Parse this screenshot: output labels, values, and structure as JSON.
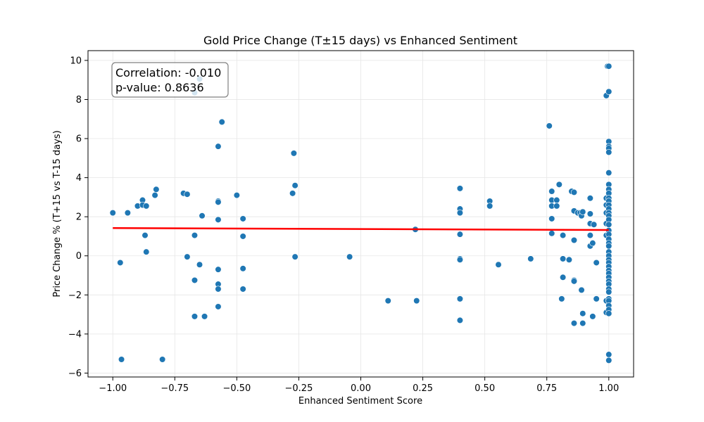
{
  "chart_data": {
    "type": "scatter",
    "title": "Gold Price Change (T±15 days) vs Enhanced Sentiment",
    "xlabel": "Enhanced Sentiment Score",
    "ylabel": "Price Change % (T+15 vs T-15 days)",
    "xlim": [
      -1.1,
      1.1
    ],
    "ylim": [
      -6.2,
      10.5
    ],
    "xticks": [
      -1.0,
      -0.75,
      -0.5,
      -0.25,
      0.0,
      0.25,
      0.5,
      0.75,
      1.0
    ],
    "xtick_labels": [
      "−1.00",
      "−0.75",
      "−0.50",
      "−0.25",
      "0.00",
      "0.25",
      "0.50",
      "0.75",
      "1.00"
    ],
    "yticks": [
      -6,
      -4,
      -2,
      0,
      2,
      4,
      6,
      8,
      10
    ],
    "ytick_labels": [
      "−6",
      "−4",
      "−2",
      "0",
      "2",
      "4",
      "6",
      "8",
      "10"
    ],
    "grid": true,
    "point_color": "#1f77b4",
    "regression_line": {
      "color": "#ff0000",
      "x": [
        -1.0,
        1.0
      ],
      "y": [
        1.42,
        1.32
      ]
    },
    "annotation": {
      "lines": [
        "Correlation: -0.010",
        "p-value: 0.8636"
      ],
      "placement": "top-left"
    },
    "points": [
      [
        -1.0,
        2.2
      ],
      [
        -0.97,
        -0.35
      ],
      [
        -0.965,
        -5.3
      ],
      [
        -0.94,
        2.2
      ],
      [
        -0.9,
        2.55
      ],
      [
        -0.88,
        2.85
      ],
      [
        -0.88,
        2.6
      ],
      [
        -0.87,
        1.05
      ],
      [
        -0.865,
        2.55
      ],
      [
        -0.865,
        0.2
      ],
      [
        -0.83,
        3.1
      ],
      [
        -0.825,
        3.4
      ],
      [
        -0.8,
        -5.3
      ],
      [
        -0.715,
        3.2
      ],
      [
        -0.7,
        3.15
      ],
      [
        -0.7,
        -0.05
      ],
      [
        -0.67,
        8.35
      ],
      [
        -0.67,
        1.05
      ],
      [
        -0.67,
        -1.25
      ],
      [
        -0.67,
        -3.1
      ],
      [
        -0.65,
        9.05
      ],
      [
        -0.65,
        -0.45
      ],
      [
        -0.64,
        2.05
      ],
      [
        -0.63,
        -3.1
      ],
      [
        -0.575,
        5.6
      ],
      [
        -0.575,
        2.8
      ],
      [
        -0.575,
        2.75
      ],
      [
        -0.575,
        1.85
      ],
      [
        -0.575,
        -0.7
      ],
      [
        -0.575,
        -1.45
      ],
      [
        -0.575,
        -1.7
      ],
      [
        -0.575,
        -2.6
      ],
      [
        -0.56,
        6.85
      ],
      [
        -0.5,
        3.1
      ],
      [
        -0.475,
        1.9
      ],
      [
        -0.475,
        1.0
      ],
      [
        -0.475,
        -0.65
      ],
      [
        -0.475,
        -1.7
      ],
      [
        -0.27,
        5.25
      ],
      [
        -0.275,
        3.2
      ],
      [
        -0.265,
        3.6
      ],
      [
        -0.265,
        -0.05
      ],
      [
        -0.045,
        -0.05
      ],
      [
        0.11,
        -2.3
      ],
      [
        0.22,
        1.35
      ],
      [
        0.225,
        -2.3
      ],
      [
        0.4,
        3.45
      ],
      [
        0.4,
        2.4
      ],
      [
        0.4,
        2.2
      ],
      [
        0.4,
        1.1
      ],
      [
        0.4,
        -0.15
      ],
      [
        0.4,
        -0.2
      ],
      [
        0.4,
        -2.2
      ],
      [
        0.4,
        -3.3
      ],
      [
        0.52,
        2.8
      ],
      [
        0.52,
        2.55
      ],
      [
        0.555,
        -0.45
      ],
      [
        0.685,
        -0.15
      ],
      [
        0.76,
        6.65
      ],
      [
        0.77,
        3.3
      ],
      [
        0.77,
        2.85
      ],
      [
        0.77,
        2.55
      ],
      [
        0.77,
        1.9
      ],
      [
        0.77,
        1.15
      ],
      [
        0.79,
        2.85
      ],
      [
        0.79,
        2.55
      ],
      [
        0.8,
        3.65
      ],
      [
        0.81,
        -2.2
      ],
      [
        0.815,
        1.05
      ],
      [
        0.815,
        -0.15
      ],
      [
        0.815,
        -1.1
      ],
      [
        0.84,
        -0.2
      ],
      [
        0.85,
        3.3
      ],
      [
        0.86,
        3.25
      ],
      [
        0.86,
        2.3
      ],
      [
        0.86,
        0.8
      ],
      [
        0.86,
        -1.25
      ],
      [
        0.86,
        -1.3
      ],
      [
        0.86,
        -3.45
      ],
      [
        0.875,
        2.2
      ],
      [
        0.885,
        2.2
      ],
      [
        0.89,
        2.05
      ],
      [
        0.89,
        -1.75
      ],
      [
        0.895,
        2.25
      ],
      [
        0.895,
        -2.95
      ],
      [
        0.895,
        -3.45
      ],
      [
        0.925,
        2.95
      ],
      [
        0.925,
        2.15
      ],
      [
        0.925,
        1.65
      ],
      [
        0.925,
        1.05
      ],
      [
        0.925,
        0.5
      ],
      [
        0.935,
        0.65
      ],
      [
        0.935,
        -3.1
      ],
      [
        0.94,
        1.6
      ],
      [
        0.95,
        -0.35
      ],
      [
        0.95,
        -2.2
      ],
      [
        0.99,
        8.2
      ],
      [
        0.99,
        2.95
      ],
      [
        0.99,
        2.6
      ],
      [
        0.99,
        2.2
      ],
      [
        0.99,
        1.65
      ],
      [
        0.99,
        1.05
      ],
      [
        0.99,
        -2.3
      ],
      [
        0.99,
        -2.9
      ],
      [
        0.995,
        9.7
      ],
      [
        1.0,
        9.7
      ],
      [
        1.0,
        8.4
      ],
      [
        1.0,
        5.85
      ],
      [
        1.0,
        5.6
      ],
      [
        1.0,
        5.5
      ],
      [
        1.0,
        5.3
      ],
      [
        1.0,
        4.25
      ],
      [
        1.0,
        3.65
      ],
      [
        1.0,
        3.4
      ],
      [
        1.0,
        3.2
      ],
      [
        1.0,
        2.95
      ],
      [
        1.0,
        2.8
      ],
      [
        1.0,
        2.6
      ],
      [
        1.0,
        2.4
      ],
      [
        1.0,
        2.2
      ],
      [
        1.0,
        2.05
      ],
      [
        1.0,
        1.85
      ],
      [
        1.0,
        1.6
      ],
      [
        1.0,
        1.3
      ],
      [
        1.0,
        1.1
      ],
      [
        1.0,
        0.85
      ],
      [
        1.0,
        0.65
      ],
      [
        1.0,
        0.5
      ],
      [
        1.0,
        0.2
      ],
      [
        1.0,
        0.0
      ],
      [
        1.0,
        -0.2
      ],
      [
        1.0,
        -0.35
      ],
      [
        1.0,
        -0.55
      ],
      [
        1.0,
        -0.75
      ],
      [
        1.0,
        -0.9
      ],
      [
        1.0,
        -1.1
      ],
      [
        1.0,
        -1.3
      ],
      [
        1.0,
        -1.45
      ],
      [
        1.0,
        -1.7
      ],
      [
        1.0,
        -1.85
      ],
      [
        1.0,
        -2.2
      ],
      [
        1.0,
        -2.3
      ],
      [
        1.0,
        -2.55
      ],
      [
        1.0,
        -2.75
      ],
      [
        1.0,
        -2.95
      ],
      [
        1.0,
        -5.05
      ],
      [
        1.0,
        -5.35
      ]
    ]
  }
}
